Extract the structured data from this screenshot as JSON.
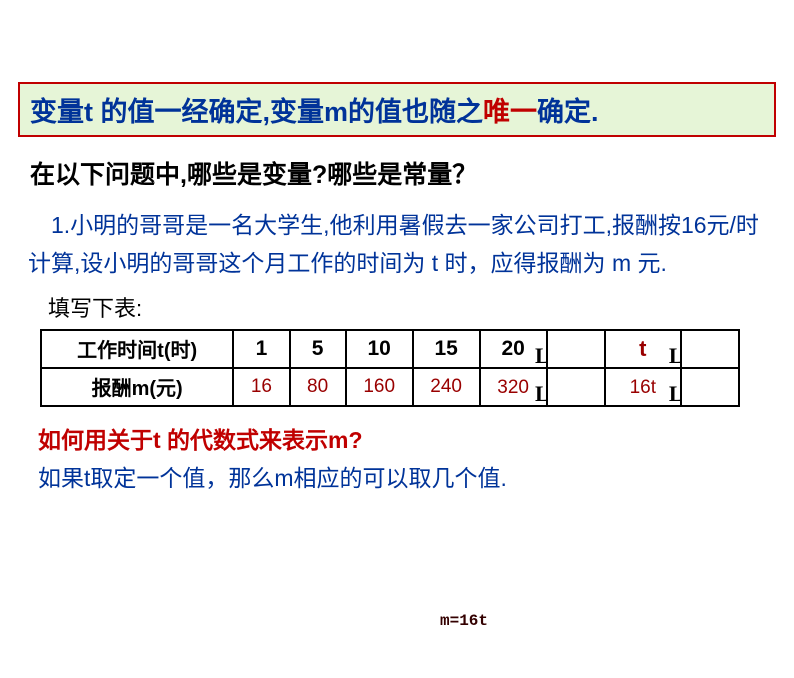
{
  "banner": {
    "part1": "变量t 的值一经确定,变量m的值也随之",
    "highlight": "唯一",
    "part2": "确定.",
    "text_color_main": "#003399",
    "text_color_highlight": "#c00000",
    "background": "#e6f5d7",
    "border_color": "#c00000"
  },
  "question": "在以下问题中,哪些是变量?哪些是常量？",
  "problem": "　1.小明的哥哥是一名大学生,他利用暑假去一家公司打工,报酬按16元/时计算,设小明的哥哥这个月工作的时间为 t 时，应得报酬为 m 元.",
  "fill_label": "填写下表:",
  "table": {
    "header_row": {
      "label": "工作时间t(时)",
      "cells": [
        "1",
        "5",
        "10",
        "15",
        "20"
      ],
      "ell1": "L",
      "var_cell": "t",
      "ell2": "L"
    },
    "data_row": {
      "label": "报酬m(元)",
      "cells": [
        "16",
        "80",
        "160",
        "240",
        "320"
      ],
      "ell1": "L",
      "var_cell": "16t",
      "ell2": "L"
    },
    "border_color": "#000000",
    "value_color": "#990000"
  },
  "bottom": {
    "question": "如何用关于t 的代数式来表示m?",
    "formula": "m=16t",
    "line": "如果t取定一个值，那么m相应的可以取几个值.",
    "question_color": "#c00000",
    "line_color": "#003399"
  }
}
